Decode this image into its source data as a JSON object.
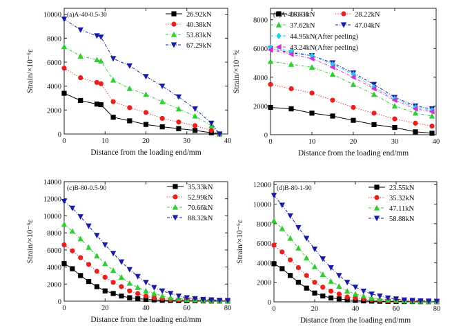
{
  "chart_data": [
    {
      "type": "line",
      "title": "(a)A-40-0.5-30",
      "xlabel": "Distance from the loading end/mm",
      "ylabel": "Strain/×10⁻⁶ε",
      "xlim": [
        0,
        40
      ],
      "ylim": [
        0,
        10500
      ],
      "xticks": [
        0,
        10,
        20,
        30,
        40
      ],
      "yticks": [
        0,
        2000,
        4000,
        6000,
        8000,
        10000
      ],
      "legend_position": "top-right",
      "series": [
        {
          "name": "26.92kN",
          "color": "#000000",
          "marker": "square",
          "line": "solid",
          "x": [
            0,
            4,
            8,
            9,
            12,
            16,
            20,
            24,
            28,
            32,
            36,
            38
          ],
          "y": [
            3400,
            2800,
            2500,
            2450,
            1400,
            1100,
            800,
            600,
            450,
            300,
            100,
            0
          ]
        },
        {
          "name": "40.38kN",
          "color": "#e8201e",
          "marker": "circle",
          "line": "dotted",
          "x": [
            0,
            4,
            8,
            9,
            12,
            16,
            20,
            24,
            28,
            32,
            36,
            38
          ],
          "y": [
            5500,
            4700,
            4300,
            4200,
            2700,
            2200,
            1800,
            1300,
            1000,
            700,
            300,
            0
          ]
        },
        {
          "name": "53.83kN",
          "color": "#33cc33",
          "marker": "triangle-up",
          "line": "dashdot",
          "x": [
            0,
            4,
            8,
            9,
            12,
            16,
            20,
            24,
            28,
            32,
            36,
            38
          ],
          "y": [
            7300,
            6500,
            6200,
            6100,
            4500,
            3800,
            3300,
            2700,
            2100,
            1500,
            700,
            0
          ]
        },
        {
          "name": "67.29kN",
          "color": "#1a1aa8",
          "marker": "triangle-down",
          "line": "dashdot",
          "x": [
            0,
            4,
            8,
            9,
            12,
            16,
            20,
            24,
            28,
            32,
            36,
            38
          ],
          "y": [
            9600,
            8700,
            8200,
            8100,
            6300,
            5700,
            4800,
            4000,
            3100,
            2100,
            900,
            0
          ]
        }
      ]
    },
    {
      "type": "line",
      "title": "(b)A-40-1-30",
      "xlabel": "Distance from the loading end/mm",
      "ylabel": "Strain/×10⁻⁶ε",
      "xlim": [
        0,
        40
      ],
      "ylim": [
        0,
        8800
      ],
      "xticks": [
        0,
        10,
        20,
        30,
        40
      ],
      "yticks": [
        0,
        2000,
        4000,
        6000,
        8000
      ],
      "legend_position": "top",
      "series": [
        {
          "name": "18.81kN",
          "color": "#000000",
          "marker": "square",
          "line": "solid",
          "x": [
            0,
            5,
            10,
            15,
            20,
            25,
            30,
            35,
            39
          ],
          "y": [
            1900,
            1800,
            1500,
            1300,
            1000,
            700,
            500,
            200,
            100
          ]
        },
        {
          "name": "28.22kN",
          "color": "#e8201e",
          "marker": "circle",
          "line": "dotted",
          "x": [
            0,
            5,
            10,
            15,
            20,
            25,
            30,
            35,
            39
          ],
          "y": [
            3500,
            3200,
            2900,
            2400,
            1900,
            1500,
            1100,
            800,
            600
          ]
        },
        {
          "name": "37.62kN",
          "color": "#33cc33",
          "marker": "triangle-up",
          "line": "dashdot",
          "x": [
            0,
            5,
            10,
            15,
            20,
            25,
            30,
            35,
            39
          ],
          "y": [
            5100,
            4900,
            4700,
            4200,
            3500,
            2800,
            2000,
            1500,
            1300
          ]
        },
        {
          "name": "47.04kN",
          "color": "#1a1aa8",
          "marker": "triangle-down",
          "line": "dashdot",
          "x": [
            0,
            5,
            10,
            15,
            20,
            25,
            30,
            35,
            39
          ],
          "y": [
            6000,
            5700,
            5500,
            5000,
            4300,
            3500,
            2600,
            2000,
            1800
          ]
        },
        {
          "name": "44.95kN(After peeling)",
          "color": "#22ccee",
          "marker": "diamond",
          "line": "dashdot",
          "x": [
            0,
            5,
            10,
            15,
            20,
            25,
            30,
            35,
            39
          ],
          "y": [
            6100,
            5800,
            5500,
            4900,
            4200,
            3300,
            2500,
            1900,
            1700
          ]
        },
        {
          "name": "43.24kN(After peeling)",
          "color": "#cc33cc",
          "marker": "triangle-left",
          "line": "dashdot",
          "x": [
            0,
            5,
            10,
            15,
            20,
            25,
            30,
            35,
            39
          ],
          "y": [
            5900,
            5600,
            5300,
            4700,
            4000,
            3200,
            2400,
            1800,
            1600
          ]
        }
      ]
    },
    {
      "type": "line",
      "title": "(c)B-80-0.5-90",
      "xlabel": "Distance from the loading end/mm",
      "ylabel": "Strain/×10⁻⁶ε",
      "xlim": [
        0,
        80
      ],
      "ylim": [
        0,
        14000
      ],
      "xticks": [
        0,
        20,
        40,
        60,
        80
      ],
      "yticks": [
        0,
        2000,
        4000,
        6000,
        8000,
        10000,
        12000,
        14000
      ],
      "legend_position": "top-right",
      "series": [
        {
          "name": "35.33kN",
          "color": "#000000",
          "marker": "square",
          "line": "solid",
          "x": [
            0,
            4,
            8,
            12,
            16,
            20,
            24,
            28,
            32,
            36,
            40,
            44,
            48,
            52,
            56,
            60,
            64,
            68,
            72,
            76,
            80
          ],
          "y": [
            4400,
            3800,
            3000,
            2300,
            1700,
            1200,
            900,
            600,
            400,
            300,
            200,
            150,
            100,
            80,
            60,
            50,
            40,
            30,
            20,
            20,
            20
          ]
        },
        {
          "name": "52.99kN",
          "color": "#e8201e",
          "marker": "circle",
          "line": "dotted",
          "x": [
            0,
            4,
            8,
            12,
            16,
            20,
            24,
            28,
            32,
            36,
            40,
            44,
            48,
            52,
            56,
            60,
            64,
            68,
            72,
            76,
            80
          ],
          "y": [
            6600,
            5900,
            5100,
            4300,
            3500,
            2800,
            2200,
            1700,
            1200,
            900,
            600,
            400,
            300,
            200,
            150,
            100,
            80,
            60,
            50,
            40,
            30
          ]
        },
        {
          "name": "70.66kN",
          "color": "#33cc33",
          "marker": "triangle-up",
          "line": "dashdot",
          "x": [
            0,
            4,
            8,
            12,
            16,
            20,
            24,
            28,
            32,
            36,
            40,
            44,
            48,
            52,
            56,
            60,
            64,
            68,
            72,
            76,
            80
          ],
          "y": [
            9000,
            8200,
            7300,
            6300,
            5300,
            4400,
            3600,
            2800,
            2100,
            1600,
            1200,
            900,
            600,
            400,
            300,
            200,
            150,
            100,
            80,
            60,
            50
          ]
        },
        {
          "name": "88.32kN",
          "color": "#1a1aa8",
          "marker": "triangle-down",
          "line": "dashdot",
          "x": [
            0,
            4,
            8,
            12,
            16,
            20,
            24,
            28,
            32,
            36,
            40,
            44,
            48,
            52,
            56,
            60,
            64,
            68,
            72,
            76,
            80
          ],
          "y": [
            11700,
            10900,
            9900,
            8800,
            7700,
            6600,
            5600,
            4600,
            3700,
            2900,
            2200,
            1600,
            1200,
            900,
            600,
            400,
            300,
            200,
            150,
            100,
            80
          ]
        }
      ]
    },
    {
      "type": "line",
      "title": "(d)B-80-1-90",
      "xlabel": "Distance from the loading end/mm",
      "ylabel": "Strain/×10⁻⁶ε",
      "xlim": [
        0,
        80
      ],
      "ylim": [
        0,
        12300
      ],
      "xticks": [
        0,
        20,
        40,
        60,
        80
      ],
      "yticks": [
        0,
        2000,
        4000,
        6000,
        8000,
        10000,
        12000
      ],
      "legend_position": "top-right",
      "series": [
        {
          "name": "23.55kN",
          "color": "#000000",
          "marker": "square",
          "line": "solid",
          "x": [
            0,
            4,
            8,
            12,
            16,
            20,
            24,
            28,
            32,
            36,
            40,
            44,
            48,
            52,
            56,
            60,
            64,
            68,
            72,
            76,
            80
          ],
          "y": [
            3900,
            3400,
            2700,
            2000,
            1400,
            900,
            600,
            400,
            300,
            200,
            150,
            100,
            80,
            60,
            50,
            40,
            30,
            30,
            20,
            20,
            20
          ]
        },
        {
          "name": "35.32kN",
          "color": "#e8201e",
          "marker": "circle",
          "line": "dotted",
          "x": [
            0,
            4,
            8,
            12,
            16,
            20,
            24,
            28,
            32,
            36,
            40,
            44,
            48,
            52,
            56,
            60,
            64,
            68,
            72,
            76,
            80
          ],
          "y": [
            5800,
            5100,
            4300,
            3500,
            2700,
            2000,
            1500,
            1100,
            800,
            500,
            400,
            300,
            200,
            150,
            100,
            80,
            60,
            50,
            40,
            30,
            30
          ]
        },
        {
          "name": "47.11kN",
          "color": "#33cc33",
          "marker": "triangle-up",
          "line": "dashdot",
          "x": [
            0,
            4,
            8,
            12,
            16,
            20,
            24,
            28,
            32,
            36,
            40,
            44,
            48,
            52,
            56,
            60,
            64,
            68,
            72,
            76,
            80
          ],
          "y": [
            8300,
            7500,
            6500,
            5500,
            4500,
            3600,
            2800,
            2100,
            1600,
            1100,
            800,
            600,
            400,
            300,
            200,
            150,
            100,
            80,
            60,
            50,
            40
          ]
        },
        {
          "name": "58.88kN",
          "color": "#1a1aa8",
          "marker": "triangle-down",
          "line": "dashdot",
          "x": [
            0,
            4,
            8,
            12,
            16,
            20,
            24,
            28,
            32,
            36,
            40,
            44,
            48,
            52,
            56,
            60,
            64,
            68,
            72,
            76,
            80
          ],
          "y": [
            10900,
            9900,
            8800,
            7600,
            6500,
            5400,
            4400,
            3500,
            2700,
            2000,
            1500,
            1100,
            800,
            600,
            400,
            300,
            200,
            150,
            100,
            80,
            60
          ]
        }
      ]
    }
  ]
}
